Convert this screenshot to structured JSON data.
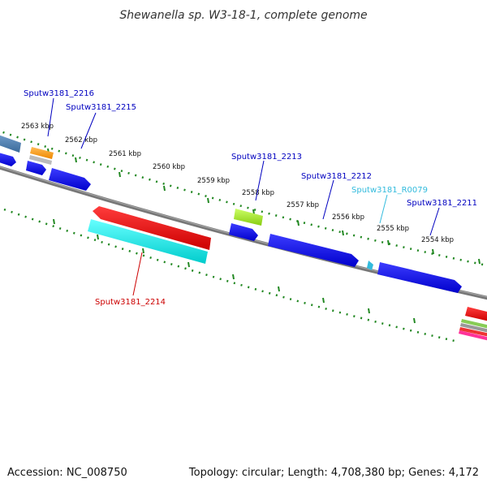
{
  "title": "Shewanella sp. W3-18-1, complete genome",
  "footer": {
    "accession": "Accession: NC_008750",
    "topology": "Topology: circular; Length: 4,708,380 bp; Genes: 4,172"
  },
  "ticks": [
    {
      "label": "2563 kbp"
    },
    {
      "label": "2562 kbp"
    },
    {
      "label": "2561 kbp"
    },
    {
      "label": "2560 kbp"
    },
    {
      "label": "2559 kbp"
    },
    {
      "label": "2558 kbp"
    },
    {
      "label": "2557 kbp"
    },
    {
      "label": "2556 kbp"
    },
    {
      "label": "2555 kbp"
    },
    {
      "label": "2554 kbp"
    }
  ],
  "genes": [
    {
      "label": "Sputw3181_2216",
      "color": "#0000c0"
    },
    {
      "label": "Sputw3181_2215",
      "color": "#0000c0"
    },
    {
      "label": "Sputw3181_2213",
      "color": "#0000c0"
    },
    {
      "label": "Sputw3181_2212",
      "color": "#0000c0"
    },
    {
      "label": "Sputw3181_R0079",
      "color": "#33bbdd"
    },
    {
      "label": "Sputw3181_2211",
      "color": "#0000c0"
    },
    {
      "label": "Sputw3181_2214",
      "color": "#cc0000"
    }
  ],
  "colors": {
    "cds_forward": "#0000ee",
    "cds_reverse": "#ee0000",
    "gc_skew": "#00e5e5",
    "gc_content": "#99dd22",
    "rna": "#33bbdd",
    "orange_feature": "#ff9900",
    "backbone": "#777777",
    "tick_marks": "#228822"
  }
}
